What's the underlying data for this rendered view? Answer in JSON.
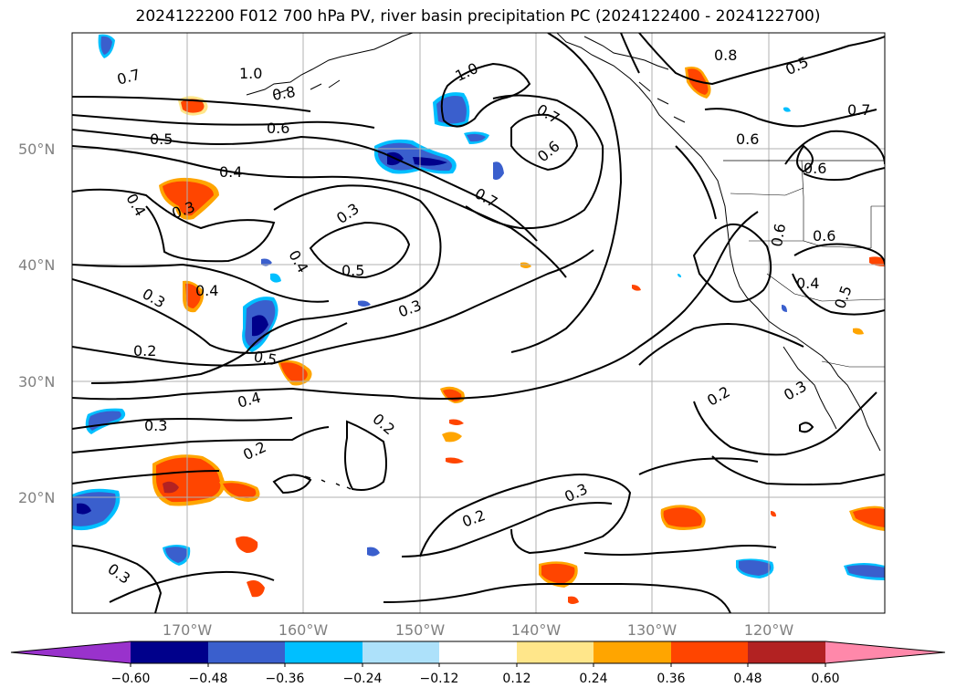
{
  "title": "2024122200 F012 700 hPa PV, river basin precipitation PC (2024122400 - 2024122700)",
  "map": {
    "extent": {
      "lon_min": -180,
      "lon_max": -110,
      "lat_min": 10,
      "lat_max": 60
    },
    "lat_labels": [
      "50°N",
      "40°N",
      "30°N",
      "20°N"
    ],
    "lon_labels": [
      "170°W",
      "160°W",
      "150°W",
      "140°W",
      "130°W",
      "120°W"
    ],
    "contour_labels": [
      "0.7",
      "1.0",
      "0.8",
      "1.0",
      "0.8",
      "0.5",
      "0.7",
      "0.6",
      "0.5",
      "0.7",
      "0.6",
      "0.6",
      "0.4",
      "0.6",
      "0.4",
      "0.3",
      "0.3",
      "0.7",
      "0.6",
      "0.4",
      "0.5",
      "0.6",
      "0.3",
      "0.4",
      "0.4",
      "0.3",
      "0.5",
      "0.2",
      "0.5",
      "0.4",
      "0.2",
      "0.3",
      "0.3",
      "0.2",
      "0.2",
      "0.3",
      "0.2",
      "0.3"
    ],
    "grid": true,
    "coastlines": true
  },
  "colorbar": {
    "ticks": [
      "−0.60",
      "−0.48",
      "−0.36",
      "−0.24",
      "−0.12",
      "0.12",
      "0.24",
      "0.36",
      "0.48",
      "0.60"
    ],
    "colors": [
      "#9932CC",
      "#00008B",
      "#3A5FCD",
      "#00BFFF",
      "#ADE1FA",
      "#FFFFFF",
      "#FFE68A",
      "#FFA500",
      "#FF4500",
      "#B22222",
      "#FF88AA"
    ],
    "extend": "both"
  }
}
